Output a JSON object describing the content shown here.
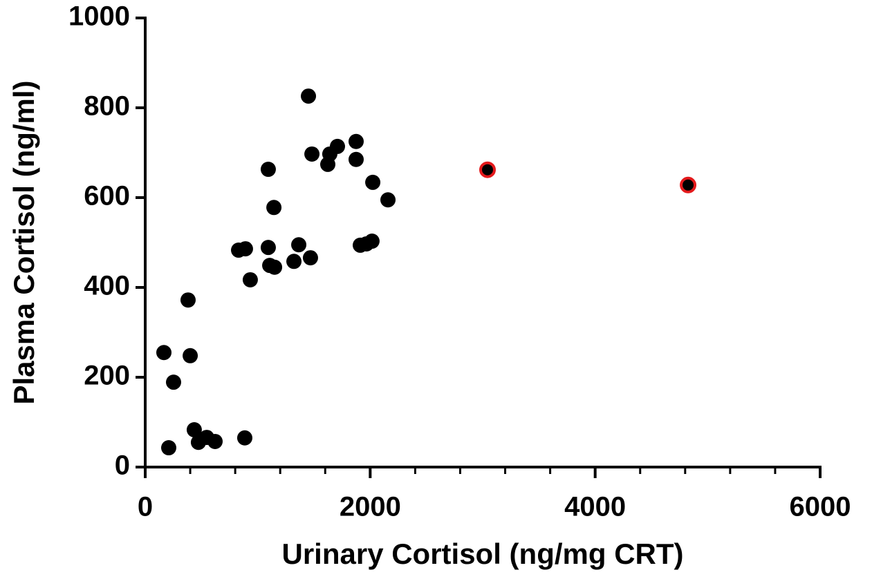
{
  "chart_data": {
    "type": "scatter",
    "xlabel": "Urinary Cortisol (ng/mg CRT)",
    "ylabel": "Plasma Cortisol  (ng/ml)",
    "xlim": [
      0,
      6000
    ],
    "ylim": [
      0,
      1000
    ],
    "xticks": [
      0,
      2000,
      4000,
      6000
    ],
    "xminorticks": [
      400,
      800,
      1200,
      1600,
      2400,
      2800,
      3200,
      3600,
      4400,
      4800,
      5200,
      5600
    ],
    "yticks": [
      0,
      200,
      400,
      600,
      800,
      1000
    ],
    "grid": false,
    "series": [
      {
        "color": "#000000",
        "x": [
          166,
          252,
          209,
          381,
          400,
          436,
          473,
          547,
          621,
          885,
          830,
          891,
          934,
          1094,
          1094,
          1107,
          1150,
          1144,
          1322,
          1365,
          1469,
          1451,
          1482,
          1623,
          1641,
          1709,
          1875,
          1875,
          1912,
          1967,
          2016,
          2023,
          2158
        ],
        "values": [
          255,
          189,
          43,
          372,
          248,
          83,
          55,
          66,
          57,
          65,
          483,
          486,
          417,
          663,
          489,
          449,
          445,
          578,
          458,
          495,
          466,
          826,
          697,
          674,
          697,
          714,
          725,
          685,
          494,
          497,
          503,
          634,
          595
        ]
      },
      {
        "color": "#000000",
        "edgecolor": "#e41a1c",
        "x": [
          3043,
          4826
        ],
        "values": [
          662,
          628
        ]
      }
    ]
  }
}
